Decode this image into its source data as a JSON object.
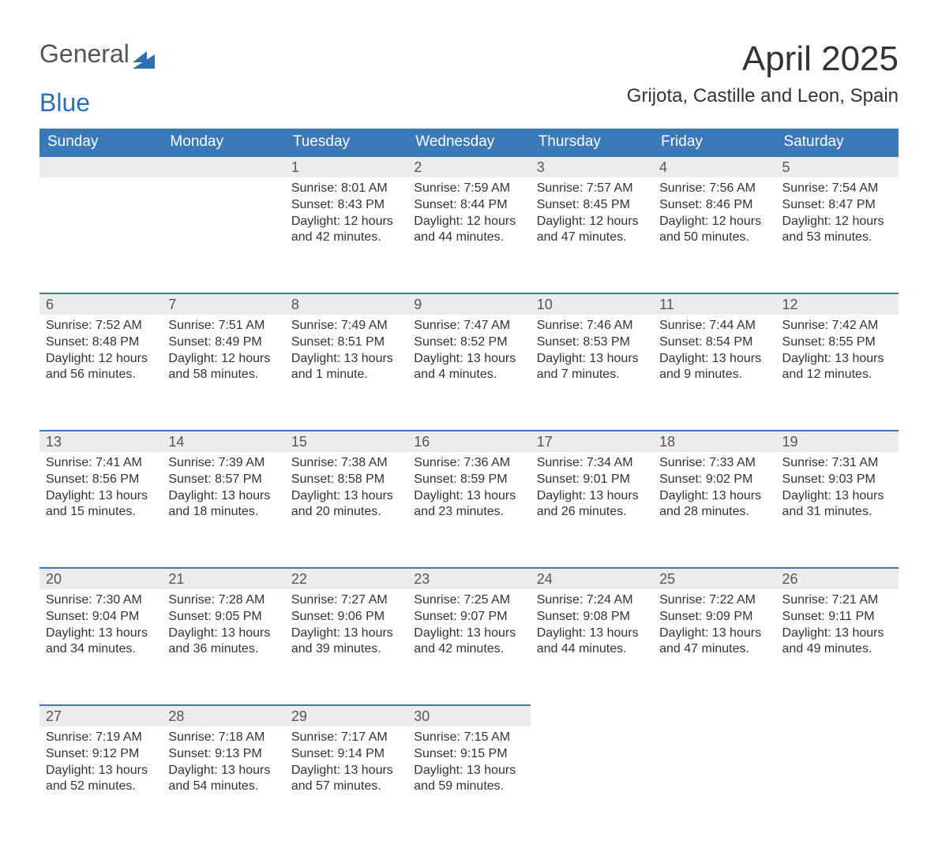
{
  "logo": {
    "text1": "General",
    "text2": "Blue",
    "icon_color": "#2d6fb5"
  },
  "title": "April 2025",
  "location": "Grijota, Castille and Leon, Spain",
  "colors": {
    "header_bg": "#3b7ab9",
    "header_fg": "#ffffff",
    "daynum_bg": "#ececec",
    "rule": "#3b7ab9",
    "text": "#333333"
  },
  "weekdays": [
    "Sunday",
    "Monday",
    "Tuesday",
    "Wednesday",
    "Thursday",
    "Friday",
    "Saturday"
  ],
  "weeks": [
    [
      null,
      null,
      {
        "n": "1",
        "sunrise": "8:01 AM",
        "sunset": "8:43 PM",
        "daylight": "12 hours and 42 minutes."
      },
      {
        "n": "2",
        "sunrise": "7:59 AM",
        "sunset": "8:44 PM",
        "daylight": "12 hours and 44 minutes."
      },
      {
        "n": "3",
        "sunrise": "7:57 AM",
        "sunset": "8:45 PM",
        "daylight": "12 hours and 47 minutes."
      },
      {
        "n": "4",
        "sunrise": "7:56 AM",
        "sunset": "8:46 PM",
        "daylight": "12 hours and 50 minutes."
      },
      {
        "n": "5",
        "sunrise": "7:54 AM",
        "sunset": "8:47 PM",
        "daylight": "12 hours and 53 minutes."
      }
    ],
    [
      {
        "n": "6",
        "sunrise": "7:52 AM",
        "sunset": "8:48 PM",
        "daylight": "12 hours and 56 minutes."
      },
      {
        "n": "7",
        "sunrise": "7:51 AM",
        "sunset": "8:49 PM",
        "daylight": "12 hours and 58 minutes."
      },
      {
        "n": "8",
        "sunrise": "7:49 AM",
        "sunset": "8:51 PM",
        "daylight": "13 hours and 1 minute."
      },
      {
        "n": "9",
        "sunrise": "7:47 AM",
        "sunset": "8:52 PM",
        "daylight": "13 hours and 4 minutes."
      },
      {
        "n": "10",
        "sunrise": "7:46 AM",
        "sunset": "8:53 PM",
        "daylight": "13 hours and 7 minutes."
      },
      {
        "n": "11",
        "sunrise": "7:44 AM",
        "sunset": "8:54 PM",
        "daylight": "13 hours and 9 minutes."
      },
      {
        "n": "12",
        "sunrise": "7:42 AM",
        "sunset": "8:55 PM",
        "daylight": "13 hours and 12 minutes."
      }
    ],
    [
      {
        "n": "13",
        "sunrise": "7:41 AM",
        "sunset": "8:56 PM",
        "daylight": "13 hours and 15 minutes."
      },
      {
        "n": "14",
        "sunrise": "7:39 AM",
        "sunset": "8:57 PM",
        "daylight": "13 hours and 18 minutes."
      },
      {
        "n": "15",
        "sunrise": "7:38 AM",
        "sunset": "8:58 PM",
        "daylight": "13 hours and 20 minutes."
      },
      {
        "n": "16",
        "sunrise": "7:36 AM",
        "sunset": "8:59 PM",
        "daylight": "13 hours and 23 minutes."
      },
      {
        "n": "17",
        "sunrise": "7:34 AM",
        "sunset": "9:01 PM",
        "daylight": "13 hours and 26 minutes."
      },
      {
        "n": "18",
        "sunrise": "7:33 AM",
        "sunset": "9:02 PM",
        "daylight": "13 hours and 28 minutes."
      },
      {
        "n": "19",
        "sunrise": "7:31 AM",
        "sunset": "9:03 PM",
        "daylight": "13 hours and 31 minutes."
      }
    ],
    [
      {
        "n": "20",
        "sunrise": "7:30 AM",
        "sunset": "9:04 PM",
        "daylight": "13 hours and 34 minutes."
      },
      {
        "n": "21",
        "sunrise": "7:28 AM",
        "sunset": "9:05 PM",
        "daylight": "13 hours and 36 minutes."
      },
      {
        "n": "22",
        "sunrise": "7:27 AM",
        "sunset": "9:06 PM",
        "daylight": "13 hours and 39 minutes."
      },
      {
        "n": "23",
        "sunrise": "7:25 AM",
        "sunset": "9:07 PM",
        "daylight": "13 hours and 42 minutes."
      },
      {
        "n": "24",
        "sunrise": "7:24 AM",
        "sunset": "9:08 PM",
        "daylight": "13 hours and 44 minutes."
      },
      {
        "n": "25",
        "sunrise": "7:22 AM",
        "sunset": "9:09 PM",
        "daylight": "13 hours and 47 minutes."
      },
      {
        "n": "26",
        "sunrise": "7:21 AM",
        "sunset": "9:11 PM",
        "daylight": "13 hours and 49 minutes."
      }
    ],
    [
      {
        "n": "27",
        "sunrise": "7:19 AM",
        "sunset": "9:12 PM",
        "daylight": "13 hours and 52 minutes."
      },
      {
        "n": "28",
        "sunrise": "7:18 AM",
        "sunset": "9:13 PM",
        "daylight": "13 hours and 54 minutes."
      },
      {
        "n": "29",
        "sunrise": "7:17 AM",
        "sunset": "9:14 PM",
        "daylight": "13 hours and 57 minutes."
      },
      {
        "n": "30",
        "sunrise": "7:15 AM",
        "sunset": "9:15 PM",
        "daylight": "13 hours and 59 minutes."
      },
      null,
      null,
      null
    ]
  ],
  "labels": {
    "sunrise": "Sunrise: ",
    "sunset": "Sunset: ",
    "daylight": "Daylight: "
  }
}
